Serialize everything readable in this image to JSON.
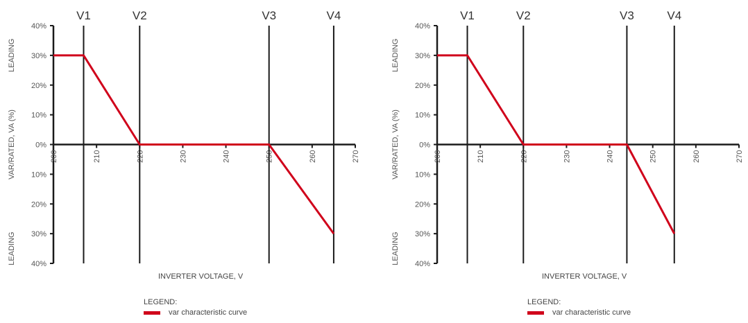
{
  "chart_data": [
    {
      "type": "line",
      "title": "",
      "xlabel": "INVERTER VOLTAGE, V",
      "ylabel": "VAR/RATED, VA (%)",
      "y_top_label": "LEADING",
      "y_bottom_label": "LEADING",
      "xlim": [
        200,
        270
      ],
      "ylim": [
        -40,
        40
      ],
      "x_ticks": [
        "200",
        "210",
        "220",
        "230",
        "240",
        "250",
        "260",
        "270"
      ],
      "y_ticks": [
        "40%",
        "30%",
        "20%",
        "10%",
        "0%",
        "10%",
        "20%",
        "30%",
        "40%"
      ],
      "grid": false,
      "legend_position": "bottom",
      "vertical_markers": [
        {
          "label": "V1",
          "x": 207
        },
        {
          "label": "V2",
          "x": 220
        },
        {
          "label": "V3",
          "x": 250
        },
        {
          "label": "V4",
          "x": 265
        }
      ],
      "series": [
        {
          "name": "var characteristic curve",
          "color": "#d0021b",
          "x": [
            200,
            207,
            220,
            250,
            265
          ],
          "y": [
            30,
            30,
            0,
            0,
            -30
          ]
        }
      ]
    },
    {
      "type": "line",
      "title": "",
      "xlabel": "INVERTER VOLTAGE, V",
      "ylabel": "VAR/RATED, VA (%)",
      "y_top_label": "LEADING",
      "y_bottom_label": "LEADING",
      "xlim": [
        200,
        270
      ],
      "ylim": [
        -40,
        40
      ],
      "x_ticks": [
        "200",
        "210",
        "220",
        "230",
        "240",
        "250",
        "260",
        "270"
      ],
      "y_ticks": [
        "40%",
        "30%",
        "20%",
        "10%",
        "0%",
        "10%",
        "20%",
        "30%",
        "40%"
      ],
      "grid": false,
      "legend_position": "bottom",
      "vertical_markers": [
        {
          "label": "V1",
          "x": 207
        },
        {
          "label": "V2",
          "x": 220
        },
        {
          "label": "V3",
          "x": 244
        },
        {
          "label": "V4",
          "x": 255
        }
      ],
      "series": [
        {
          "name": "var characteristic curve",
          "color": "#d0021b",
          "x": [
            200,
            207,
            220,
            244,
            255
          ],
          "y": [
            30,
            30,
            0,
            0,
            -30
          ]
        }
      ]
    }
  ],
  "panels": [
    {
      "xlabel": "INVERTER VOLTAGE, V",
      "legend_title": "LEGEND:",
      "legend_item": "var characteristic curve"
    },
    {
      "xlabel": "INVERTER VOLTAGE, V",
      "legend_title": "LEGEND:",
      "legend_item": "var characteristic curve"
    }
  ]
}
